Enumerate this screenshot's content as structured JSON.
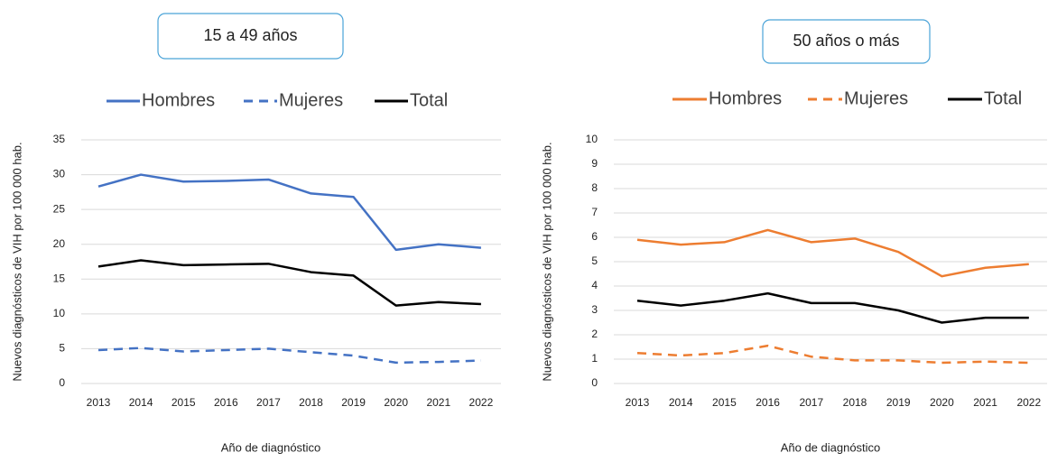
{
  "chart_data": [
    {
      "type": "line",
      "title": "15 a 49 años",
      "y_label": "Nuevos diagnósticos de VIH  por 100 000 hab.",
      "x_label": "Año de diagnóstico",
      "categories": [
        "2013",
        "2014",
        "2015",
        "2016",
        "2017",
        "2018",
        "2019",
        "2020",
        "2021",
        "2022"
      ],
      "ylim": [
        0,
        35
      ],
      "yticks": [
        0,
        5,
        10,
        15,
        20,
        25,
        30,
        35
      ],
      "grid": true,
      "legend": "top",
      "series": [
        {
          "name": "Hombres",
          "color": "#4472c4",
          "dashed": false,
          "values": [
            28.3,
            30.0,
            29.0,
            29.1,
            29.3,
            27.3,
            26.8,
            19.2,
            20.0,
            19.5
          ]
        },
        {
          "name": "Mujeres",
          "color": "#4472c4",
          "dashed": true,
          "values": [
            4.8,
            5.1,
            4.6,
            4.8,
            5.0,
            4.5,
            4.0,
            3.0,
            3.1,
            3.3
          ]
        },
        {
          "name": "Total",
          "color": "#000000",
          "dashed": false,
          "values": [
            16.8,
            17.7,
            17.0,
            17.1,
            17.2,
            16.0,
            15.5,
            11.2,
            11.7,
            11.4
          ]
        }
      ]
    },
    {
      "type": "line",
      "title": "50 años o más",
      "y_label": "Nuevos diagnósticos de VIH  por 100 000 hab.",
      "x_label": "Año de diagnóstico",
      "categories": [
        "2013",
        "2014",
        "2015",
        "2016",
        "2017",
        "2018",
        "2019",
        "2020",
        "2021",
        "2022"
      ],
      "ylim": [
        0,
        10
      ],
      "yticks": [
        0,
        1,
        2,
        3,
        4,
        5,
        6,
        7,
        8,
        9,
        10
      ],
      "grid": true,
      "legend": "top",
      "series": [
        {
          "name": "Hombres",
          "color": "#ed7d31",
          "dashed": false,
          "values": [
            5.9,
            5.7,
            5.8,
            6.3,
            5.8,
            5.95,
            5.4,
            4.4,
            4.75,
            4.9
          ]
        },
        {
          "name": "Mujeres",
          "color": "#ed7d31",
          "dashed": true,
          "values": [
            1.25,
            1.15,
            1.25,
            1.55,
            1.1,
            0.95,
            0.95,
            0.85,
            0.9,
            0.85
          ]
        },
        {
          "name": "Total",
          "color": "#000000",
          "dashed": false,
          "values": [
            3.4,
            3.2,
            3.4,
            3.7,
            3.3,
            3.3,
            3.0,
            2.5,
            2.7,
            2.7
          ]
        }
      ]
    }
  ]
}
